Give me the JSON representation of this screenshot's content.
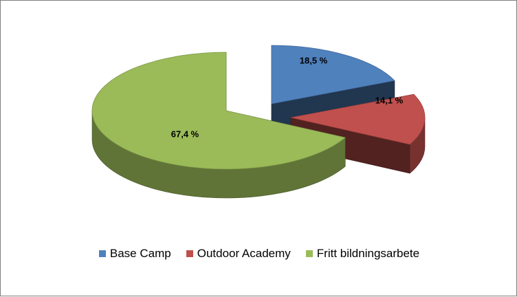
{
  "chart_data": {
    "type": "pie",
    "title": "",
    "variant": "3d-exploded",
    "categories": [
      "Base Camp",
      "Outdoor Academy",
      "Fritt bildningsarbete"
    ],
    "values": [
      18.5,
      14.1,
      67.4
    ],
    "labels": [
      "18,5 %",
      "14,1 %",
      "67,4 %"
    ],
    "colors": [
      "#4f81bd",
      "#c0504d",
      "#9bbb59"
    ],
    "legend_position": "bottom"
  }
}
